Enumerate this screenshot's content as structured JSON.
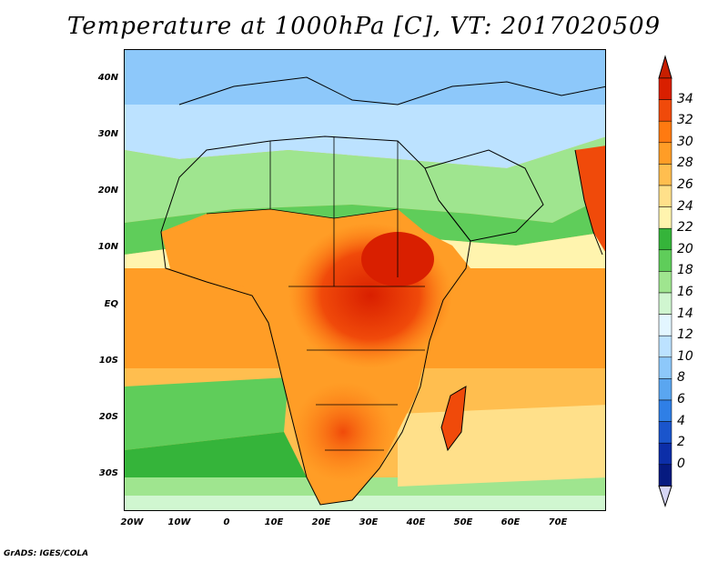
{
  "title": "Temperature at 1000hPa [C], VT: 2017020509",
  "credit": "GrADS: IGES/COLA",
  "lat_labels": [
    "40N",
    "30N",
    "20N",
    "10N",
    "EQ",
    "10S",
    "20S",
    "30S"
  ],
  "lon_labels": [
    "20W",
    "10W",
    "0",
    "10E",
    "20E",
    "30E",
    "40E",
    "50E",
    "60E",
    "70E"
  ],
  "colorbar": {
    "labels": [
      "34",
      "32",
      "30",
      "28",
      "26",
      "24",
      "22",
      "20",
      "18",
      "16",
      "14",
      "12",
      "10",
      "8",
      "6",
      "4",
      "2",
      "0"
    ],
    "colors": [
      "#d91f00",
      "#f04a0a",
      "#ff7a10",
      "#ff9d26",
      "#ffbe4f",
      "#ffe08a",
      "#fff4ae",
      "#35b43a",
      "#5fcd5a",
      "#9fe58f",
      "#d0f6d0",
      "#e3f6ff",
      "#bce2ff",
      "#8dc8fa",
      "#5aa6f0",
      "#2f7fe6",
      "#1a55cc",
      "#0c2ea8",
      "#061a80"
    ],
    "top_color": "#c81e00",
    "bottom_color": "#d6d6f5"
  }
}
